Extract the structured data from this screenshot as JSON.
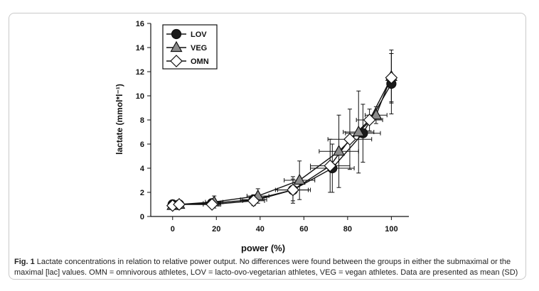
{
  "chart_data": {
    "type": "line",
    "title": "",
    "xlabel": "power (%)",
    "ylabel": "lactate (mmol*l⁻¹)",
    "xlim": [
      -10,
      108
    ],
    "ylim": [
      0,
      16
    ],
    "x_ticks": [
      0,
      20,
      40,
      60,
      80,
      100
    ],
    "y_ticks": [
      0,
      2,
      4,
      6,
      8,
      10,
      12,
      14,
      16
    ],
    "legend_position": "top-left",
    "series": [
      {
        "name": "LOV",
        "marker": "circle",
        "fill": "#1a1a1a",
        "points": [
          {
            "x": 0,
            "y": 1.0,
            "xerr": 0,
            "yerr": 0.1
          },
          {
            "x": 3,
            "y": 1.0,
            "xerr": 0,
            "yerr": 0.1
          },
          {
            "x": 18,
            "y": 1.1,
            "xerr": 4,
            "yerr": 0.3
          },
          {
            "x": 37,
            "y": 1.4,
            "xerr": 6,
            "yerr": 0.4
          },
          {
            "x": 55,
            "y": 2.2,
            "xerr": 7,
            "yerr": 0.9
          },
          {
            "x": 73,
            "y": 4.0,
            "xerr": 10,
            "yerr": 2.0
          },
          {
            "x": 87,
            "y": 6.9,
            "xerr": 8,
            "yerr": 2.4
          },
          {
            "x": 100,
            "y": 11.0,
            "xerr": 0,
            "yerr": 2.5
          }
        ]
      },
      {
        "name": "VEG",
        "marker": "triangle",
        "fill": "#8c8c8c",
        "points": [
          {
            "x": 0,
            "y": 0.9,
            "xerr": 0,
            "yerr": 0.1
          },
          {
            "x": 3,
            "y": 1.0,
            "xerr": 0,
            "yerr": 0.1
          },
          {
            "x": 19,
            "y": 1.2,
            "xerr": 4,
            "yerr": 0.5
          },
          {
            "x": 39,
            "y": 1.7,
            "xerr": 5,
            "yerr": 0.6
          },
          {
            "x": 58,
            "y": 3.0,
            "xerr": 7,
            "yerr": 1.6
          },
          {
            "x": 76,
            "y": 5.4,
            "xerr": 9,
            "yerr": 3.0
          },
          {
            "x": 85,
            "y": 7.0,
            "xerr": 7,
            "yerr": 3.4
          },
          {
            "x": 93,
            "y": 8.4,
            "xerr": 5,
            "yerr": 0.7
          },
          {
            "x": 100,
            "y": 11.6,
            "xerr": 0,
            "yerr": 2.2
          }
        ]
      },
      {
        "name": "OMN",
        "marker": "diamond",
        "fill": "#ffffff",
        "points": [
          {
            "x": 0,
            "y": 0.9,
            "xerr": 0,
            "yerr": 0.1
          },
          {
            "x": 3,
            "y": 1.0,
            "xerr": 0,
            "yerr": 0.1
          },
          {
            "x": 18,
            "y": 1.0,
            "xerr": 4,
            "yerr": 0.3
          },
          {
            "x": 37,
            "y": 1.3,
            "xerr": 5,
            "yerr": 0.4
          },
          {
            "x": 55,
            "y": 2.2,
            "xerr": 8,
            "yerr": 1.1
          },
          {
            "x": 72,
            "y": 4.2,
            "xerr": 9,
            "yerr": 2.2
          },
          {
            "x": 81,
            "y": 6.4,
            "xerr": 10,
            "yerr": 2.5
          },
          {
            "x": 90,
            "y": 8.0,
            "xerr": 6,
            "yerr": 0.9
          },
          {
            "x": 100,
            "y": 11.5,
            "xerr": 0,
            "yerr": 2.0
          }
        ]
      }
    ]
  },
  "caption": {
    "label": "Fig. 1",
    "text": " Lactate concentrations in relation to relative power output. No differences were found between the groups in either the submaximal or the maximal [lac] values. OMN = omnivorous athletes, LOV = lacto-ovo-vegetarian athletes, VEG = vegan athletes. Data are presented as mean (SD)"
  }
}
